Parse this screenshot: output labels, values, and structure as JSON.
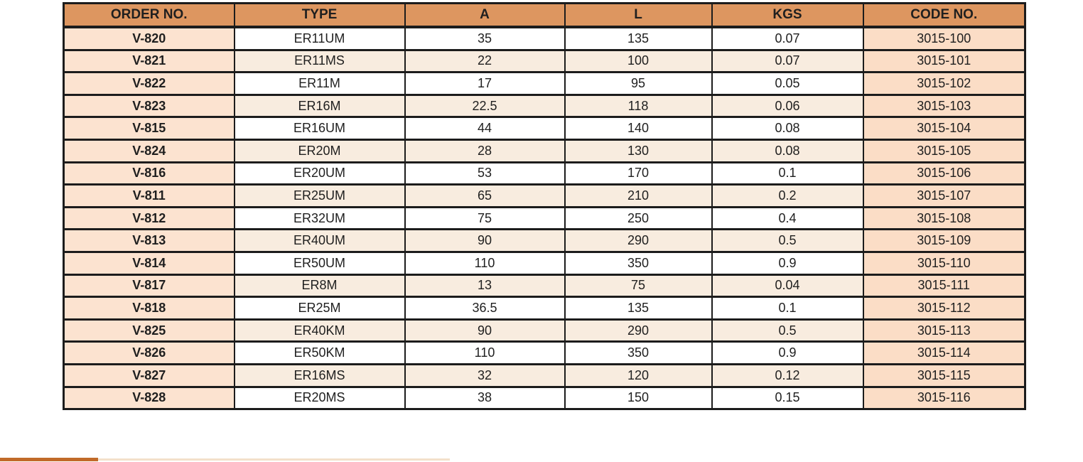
{
  "colors": {
    "header_bg": "#dd9660",
    "order_col_bg": "#fce3d0",
    "code_col_bg": "#fbddc6",
    "row_even_bg": "#f8ecdf",
    "row_odd_bg": "#ffffff",
    "border": "#1c1c1c",
    "text": "#1f1f1f",
    "strip_orange": "#c16a29",
    "strip_peach": "#f3e0ca"
  },
  "table": {
    "columns": [
      {
        "key": "order_no",
        "label": "ORDER NO."
      },
      {
        "key": "type",
        "label": "TYPE"
      },
      {
        "key": "a",
        "label": "A"
      },
      {
        "key": "l",
        "label": "L"
      },
      {
        "key": "kgs",
        "label": "KGS"
      },
      {
        "key": "code_no",
        "label": "CODE NO."
      }
    ],
    "rows": [
      [
        "V-820",
        "ER11UM",
        "35",
        "135",
        "0.07",
        "3015-100"
      ],
      [
        "V-821",
        "ER11MS",
        "22",
        "100",
        "0.07",
        "3015-101"
      ],
      [
        "V-822",
        "ER11M",
        "17",
        "95",
        "0.05",
        "3015-102"
      ],
      [
        "V-823",
        "ER16M",
        "22.5",
        "118",
        "0.06",
        "3015-103"
      ],
      [
        "V-815",
        "ER16UM",
        "44",
        "140",
        "0.08",
        "3015-104"
      ],
      [
        "V-824",
        "ER20M",
        "28",
        "130",
        "0.08",
        "3015-105"
      ],
      [
        "V-816",
        "ER20UM",
        "53",
        "170",
        "0.1",
        "3015-106"
      ],
      [
        "V-811",
        "ER25UM",
        "65",
        "210",
        "0.2",
        "3015-107"
      ],
      [
        "V-812",
        "ER32UM",
        "75",
        "250",
        "0.4",
        "3015-108"
      ],
      [
        "V-813",
        "ER40UM",
        "90",
        "290",
        "0.5",
        "3015-109"
      ],
      [
        "V-814",
        "ER50UM",
        "110",
        "350",
        "0.9",
        "3015-110"
      ],
      [
        "V-817",
        "ER8M",
        "13",
        "75",
        "0.04",
        "3015-111"
      ],
      [
        "V-818",
        "ER25M",
        "36.5",
        "135",
        "0.1",
        "3015-112"
      ],
      [
        "V-825",
        "ER40KM",
        "90",
        "290",
        "0.5",
        "3015-113"
      ],
      [
        "V-826",
        "ER50KM",
        "110",
        "350",
        "0.9",
        "3015-114"
      ],
      [
        "V-827",
        "ER16MS",
        "32",
        "120",
        "0.12",
        "3015-115"
      ],
      [
        "V-828",
        "ER20MS",
        "38",
        "150",
        "0.15",
        "3015-116"
      ]
    ]
  }
}
